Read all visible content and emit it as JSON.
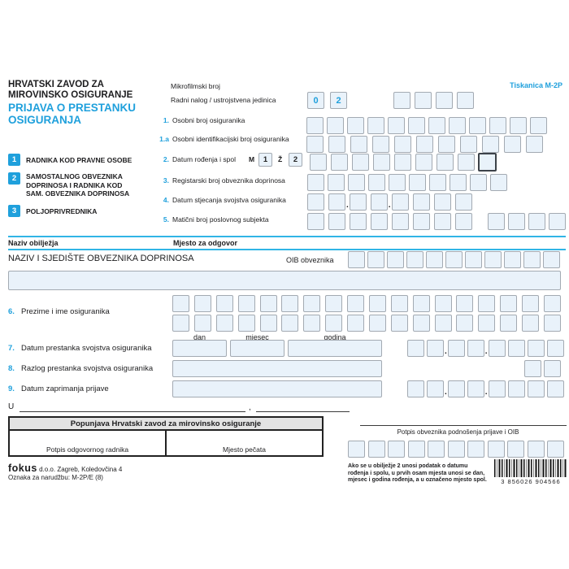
{
  "colors": {
    "accent": "#1fa0dc",
    "line": "#31b5e6",
    "box_fill": "#e9f2fa",
    "box_border": "#a3aab2"
  },
  "header": {
    "org1": "HRVATSKI ZAVOD ZA",
    "org2": "MIROVINSKO OSIGURANJE",
    "title1": "PRIJAVA O PRESTANKU",
    "title2": "OSIGURANJA",
    "form_code": "Tiskanica M-2P"
  },
  "top": {
    "mikrofilmski_label": "Mikrofilmski broj",
    "radni_nalog_label": "Radni nalog / ustrojstvena jedinica",
    "radni_values": [
      "0",
      "2"
    ],
    "radni_empty_boxes": 4
  },
  "legend": [
    {
      "num": "1",
      "lines": [
        "RADNIKA KOD PRAVNE OSOBE"
      ]
    },
    {
      "num": "2",
      "lines": [
        "SAMOSTALNOG OBVEZNIKA",
        "DOPRINOSA I RADNIKA KOD",
        "SAM. OBVEZNIKA DOPRINOSA"
      ]
    },
    {
      "num": "3",
      "lines": [
        "POLJOPRIVREDNIKA"
      ]
    }
  ],
  "fields": {
    "f1": {
      "num": "1.",
      "label": "Osobni broj osiguranika",
      "boxes": 12
    },
    "f1a": {
      "num": "1.a",
      "label": "Osobni identifikacijski broj osiguranika",
      "boxes": 11
    },
    "f2": {
      "num": "2.",
      "label": "Datum rođenja i spol",
      "m": "M",
      "m_val": "1",
      "z": "Ž",
      "z_val": "2",
      "boxes": 8
    },
    "f3": {
      "num": "3.",
      "label": "Registarski broj obveznika doprinosa",
      "boxes": 10
    },
    "f4": {
      "num": "4.",
      "label": "Datum stjecanja svojstva osiguranika",
      "groups": [
        2,
        2,
        4
      ],
      "sep": "."
    },
    "f5": {
      "num": "5.",
      "label": "Matični broj poslovnog subjekta",
      "boxes": 8,
      "right_boxes": 4
    }
  },
  "section": {
    "col1": "Naziv obilježja",
    "col2": "Mjesto za odgovor",
    "naziv": "NAZIV I SJEDIŠTE OBVEZNIKA DOPRINOSA",
    "oib_label": "OIB obveznika",
    "oib_boxes": 11
  },
  "rows": {
    "r6": {
      "num": "6.",
      "label": "Prezime i ime osiguranika",
      "boxes_per_row": 18
    },
    "r7": {
      "num": "7.",
      "label": "Datum prestanka svojstva osiguranika",
      "groups": [
        2,
        2,
        4
      ],
      "sep": "."
    },
    "r8": {
      "num": "8.",
      "label": "Razlog prestanka svojstva osiguranika",
      "boxes": 2
    },
    "r9": {
      "num": "9.",
      "label": "Datum zaprimanja prijave",
      "groups": [
        2,
        2,
        4
      ],
      "sep": "."
    }
  },
  "date_labels": {
    "dan": "dan",
    "mjesec": "mjesec",
    "godina": "godina"
  },
  "place": {
    "prefix": "U",
    "comma": ","
  },
  "table": {
    "header": "Popunjava Hrvatski zavod za mirovinsko osiguranje",
    "cell1": "Potpis odgovornog radnika",
    "cell2": "Mjesto pečata"
  },
  "signature": {
    "label": "Potpis obveznika podnošenja prijave i OIB",
    "oib_boxes": 11
  },
  "note": {
    "lines": [
      "Ako se u obilježje 2 unosi podatak o datumu",
      "rođenja i spolu, u prvih osam mjesta unosi se dan,",
      "mjesec i godina rođenja, a u označeno mjesto spol."
    ]
  },
  "footer": {
    "logo": "fokus",
    "address": "d.o.o. Zagreb, Koledovčina 4",
    "order_label": "Oznaka za narudžbu: M-2P/E (8)"
  },
  "barcode": {
    "digits": "3 856026 904566"
  }
}
